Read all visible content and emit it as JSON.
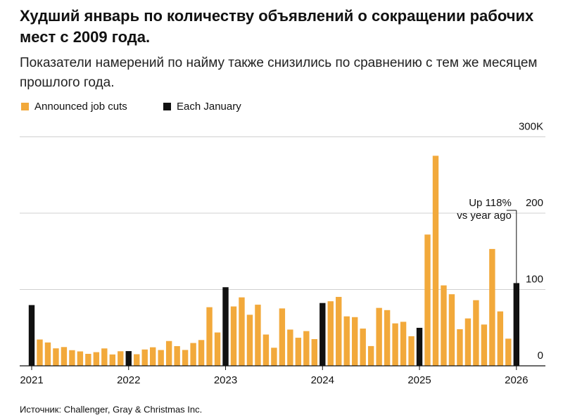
{
  "chart_data": {
    "type": "bar",
    "title": "Худший январь по количеству объявлений о сокращении рабочих мест с 2009 года.",
    "subtitle": "Показатели намерений по найму также снизились по сравнению с тем же месяцем прошлого года.",
    "categories": [
      "2021",
      null,
      null,
      null,
      null,
      null,
      null,
      null,
      null,
      null,
      null,
      null,
      "2022",
      null,
      null,
      null,
      null,
      null,
      null,
      null,
      null,
      null,
      null,
      null,
      "2023",
      null,
      null,
      null,
      null,
      null,
      null,
      null,
      null,
      null,
      null,
      null,
      "2024",
      null,
      null,
      null,
      null,
      null,
      null,
      null,
      null,
      null,
      null,
      null,
      "2025",
      null,
      null,
      null,
      null,
      null,
      null,
      null,
      null,
      null,
      null,
      null,
      "2026"
    ],
    "series": [
      {
        "name": "Announced job cuts",
        "color": "#f2a93b",
        "values": [
          null,
          34.5,
          30.6,
          22.9,
          24.6,
          20.5,
          18.9,
          15.7,
          17.9,
          22.8,
          14.9,
          19.1,
          null,
          15.2,
          21.4,
          24.3,
          20.7,
          32.5,
          25.8,
          20.8,
          29.9,
          33.8,
          76.8,
          43.7,
          null,
          77.8,
          89.7,
          66.9,
          80.1,
          41.0,
          23.7,
          75.2,
          47.5,
          36.8,
          45.5,
          35.0,
          null,
          84.6,
          90.3,
          64.8,
          63.8,
          48.8,
          25.9,
          75.9,
          73.0,
          55.6,
          57.7,
          38.8,
          null,
          172.0,
          275.2,
          105.4,
          93.8,
          48.0,
          62.1,
          86.0,
          54.1,
          153.1,
          71.3,
          35.6,
          null
        ]
      },
      {
        "name": "Each January",
        "color": "#111111",
        "values": [
          79.6,
          null,
          null,
          null,
          null,
          null,
          null,
          null,
          null,
          null,
          null,
          null,
          19.3,
          null,
          null,
          null,
          null,
          null,
          null,
          null,
          null,
          null,
          null,
          null,
          103.0,
          null,
          null,
          null,
          null,
          null,
          null,
          null,
          null,
          null,
          null,
          null,
          82.3,
          null,
          null,
          null,
          null,
          null,
          null,
          null,
          null,
          null,
          null,
          null,
          49.8,
          null,
          null,
          null,
          null,
          null,
          null,
          null,
          null,
          null,
          null,
          null,
          108.4
        ]
      }
    ],
    "ylim": [
      0,
      310
    ],
    "yticks": [
      0,
      100,
      200,
      {
        "value": 300,
        "label": "300K"
      }
    ],
    "grid": true,
    "annotation": [
      "Up 118%",
      "vs year ago"
    ],
    "source": "Источник: Challenger, Gray & Christmas Inc."
  }
}
